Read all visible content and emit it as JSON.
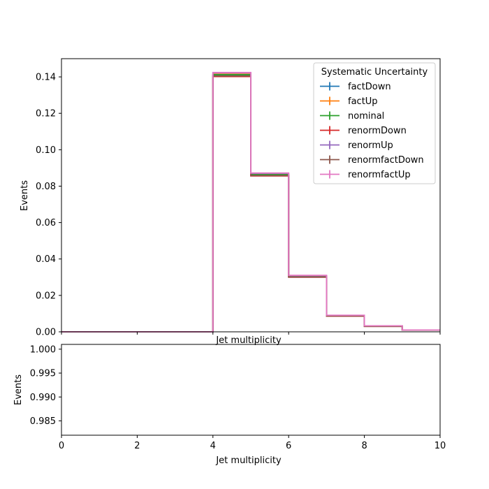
{
  "chart_data": [
    {
      "type": "step",
      "xlabel": "Jet multiplicity",
      "ylabel": "Events",
      "xlim": [
        0,
        10
      ],
      "ylim": [
        0,
        0.15
      ],
      "xticks": [
        0,
        2,
        4,
        6,
        8,
        10
      ],
      "yticks": [
        0.0,
        0.02,
        0.04,
        0.06,
        0.08,
        0.1,
        0.12,
        0.14
      ],
      "ytick_labels": [
        "0.00",
        "0.02",
        "0.04",
        "0.06",
        "0.08",
        "0.10",
        "0.12",
        "0.14"
      ],
      "bin_edges": [
        0,
        1,
        2,
        3,
        4,
        5,
        6,
        7,
        8,
        9,
        10
      ],
      "legend": {
        "title": "Systematic Uncertainty",
        "placement": "top-right"
      },
      "series": [
        {
          "name": "factDown",
          "color": "#1f77b4",
          "values": [
            0,
            0,
            0,
            0,
            0.141,
            0.0862,
            0.0304,
            0.0088,
            0.0031,
            0.001
          ]
        },
        {
          "name": "factUp",
          "color": "#ff7f0e",
          "values": [
            0,
            0,
            0,
            0,
            0.1415,
            0.0866,
            0.0306,
            0.0089,
            0.0032,
            0.001
          ]
        },
        {
          "name": "nominal",
          "color": "#2ca02c",
          "values": [
            0,
            0,
            0,
            0,
            0.1412,
            0.0864,
            0.0305,
            0.0088,
            0.0031,
            0.001
          ]
        },
        {
          "name": "renormDown",
          "color": "#d62728",
          "values": [
            0,
            0,
            0,
            0,
            0.1402,
            0.0856,
            0.03,
            0.0086,
            0.003,
            0.001
          ]
        },
        {
          "name": "renormUp",
          "color": "#9467bd",
          "values": [
            0,
            0,
            0,
            0,
            0.1422,
            0.087,
            0.0309,
            0.009,
            0.0032,
            0.001
          ]
        },
        {
          "name": "renormfactDown",
          "color": "#8c564b",
          "values": [
            0,
            0,
            0,
            0,
            0.1405,
            0.0858,
            0.0301,
            0.0087,
            0.003,
            0.001
          ]
        },
        {
          "name": "renormfactUp",
          "color": "#e377c2",
          "values": [
            0,
            0,
            0,
            0,
            0.1424,
            0.0872,
            0.031,
            0.0091,
            0.0033,
            0.001
          ]
        }
      ]
    },
    {
      "type": "ratio",
      "xlabel": "Jet multiplicity",
      "ylabel": "Events",
      "xlim": [
        0,
        10
      ],
      "ylim": [
        0.982,
        1.001
      ],
      "xticks": [
        0,
        2,
        4,
        6,
        8,
        10
      ],
      "yticks": [
        0.985,
        0.99,
        0.995,
        1.0
      ],
      "ytick_labels": [
        "0.985",
        "0.990",
        "0.995",
        "1.000"
      ],
      "series": []
    }
  ]
}
